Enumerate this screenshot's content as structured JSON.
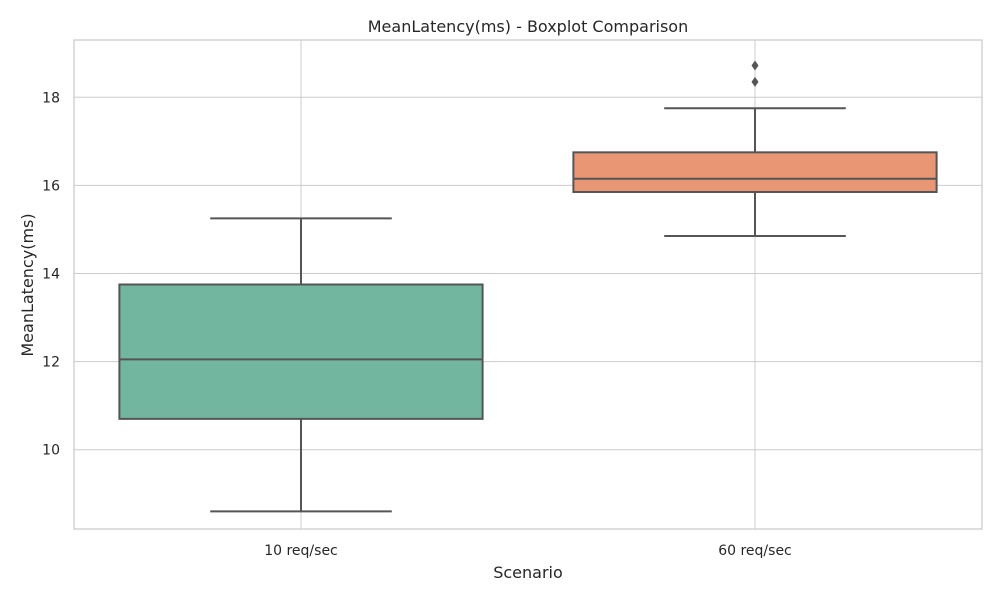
{
  "chart_data": {
    "type": "boxplot",
    "title": "MeanLatency(ms) - Boxplot Comparison",
    "xlabel": "Scenario",
    "ylabel": "MeanLatency(ms)",
    "ylim": [
      8.2,
      19.3
    ],
    "yticks": [
      10,
      12,
      14,
      16,
      18
    ],
    "grid": true,
    "categories": [
      "10 req/sec",
      "60 req/sec"
    ],
    "series": [
      {
        "category": "10 req/sec",
        "color": "#73b6a0",
        "whisker_low": 8.6,
        "q1": 10.7,
        "median": 12.05,
        "q3": 13.75,
        "whisker_high": 15.25,
        "outliers": []
      },
      {
        "category": "60 req/sec",
        "color": "#e99675",
        "whisker_low": 14.85,
        "q1": 15.85,
        "median": 16.15,
        "q3": 16.75,
        "whisker_high": 17.75,
        "outliers": [
          18.35,
          18.72
        ]
      }
    ]
  }
}
